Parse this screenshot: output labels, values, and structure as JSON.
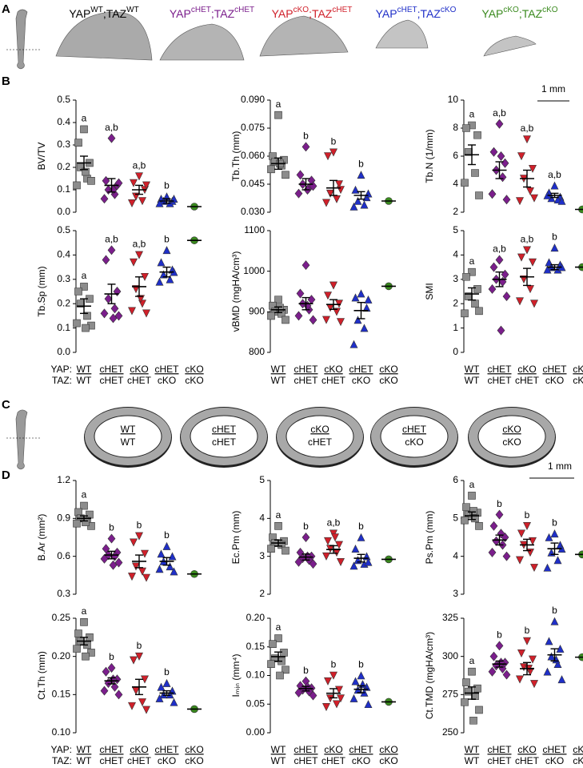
{
  "panel_letters": [
    "A",
    "B",
    "C",
    "D"
  ],
  "scale_bar": "1 mm",
  "genotypes": [
    [
      "YAP",
      "WT",
      ";TAZ",
      "WT"
    ],
    [
      "YAP",
      "cHET",
      ";TAZ",
      "cHET"
    ],
    [
      "YAP",
      "cKO",
      ";TAZ",
      "cHET"
    ],
    [
      "YAP",
      "cHET",
      ";TAZ",
      "cKO"
    ],
    [
      "YAP",
      "cKO",
      ";TAZ",
      "cKO"
    ]
  ],
  "row_labels": [
    "YAP:",
    "TAZ:"
  ],
  "yap": [
    "WT",
    "cHET",
    "cKO",
    "cHET",
    "cKO"
  ],
  "taz": [
    "WT",
    "cHET",
    "cHET",
    "cKO",
    "cKO"
  ],
  "label_colors": [
    "#000000",
    "#7b1e8c",
    "#d0202a",
    "#1f2fc8",
    "#3a8a1e"
  ],
  "marker_colors": [
    "#8c8c8c",
    "#7b1e8c",
    "#d0202a",
    "#1f2fc8",
    "#3a8a1e"
  ],
  "markers": [
    "square",
    "diamond",
    "triangle-down",
    "triangle-up",
    "circle"
  ],
  "chart_data": [
    {
      "type": "strip",
      "ylabel": "BV/TV",
      "ylim": [
        0,
        0.5
      ],
      "yticks": [
        {
          "value": 0,
          "label": "0.0"
        },
        0.1,
        0.2,
        0.3,
        0.4,
        0.5
      ],
      "groups": [
        {
          "values": [
            0.37,
            0.31,
            0.22,
            0.2,
            0.15,
            0.12,
            0.14,
            0.18
          ],
          "mean": 0.22,
          "sem": 0.03,
          "letter": "a"
        },
        {
          "values": [
            0.33,
            0.14,
            0.12,
            0.1,
            0.08,
            0.06,
            0.13,
            0.1
          ],
          "mean": 0.12,
          "sem": 0.03,
          "letter": "a,b"
        },
        {
          "values": [
            0.16,
            0.13,
            0.1,
            0.07,
            0.05,
            0.04,
            0.12
          ],
          "mean": 0.1,
          "sem": 0.02,
          "letter": "a,b"
        },
        {
          "values": [
            0.07,
            0.06,
            0.05,
            0.05,
            0.04,
            0.04,
            0.06
          ],
          "mean": 0.05,
          "sem": 0.01,
          "letter": "b"
        },
        {
          "values": [
            0.025
          ],
          "mean": 0.025
        }
      ]
    },
    {
      "type": "strip",
      "ylabel": "Tb.Th (mm)",
      "ylim": [
        0.03,
        0.09
      ],
      "yticks": [
        {
          "value": 0.03,
          "label": "0.030"
        },
        {
          "value": 0.045,
          "label": "0.045"
        },
        {
          "value": 0.06,
          "label": "0.060"
        },
        {
          "value": 0.075,
          "label": "0.075"
        },
        {
          "value": 0.09,
          "label": "0.090"
        }
      ],
      "groups": [
        {
          "values": [
            0.082,
            0.06,
            0.058,
            0.057,
            0.055,
            0.053,
            0.05,
            0.056
          ],
          "mean": 0.056,
          "sem": 0.003,
          "letter": "a"
        },
        {
          "values": [
            0.065,
            0.05,
            0.047,
            0.045,
            0.043,
            0.04,
            0.044,
            0.042
          ],
          "mean": 0.045,
          "sem": 0.003,
          "letter": "b"
        },
        {
          "values": [
            0.062,
            0.06,
            0.045,
            0.04,
            0.037,
            0.035,
            0.042
          ],
          "mean": 0.043,
          "sem": 0.004,
          "letter": "b"
        },
        {
          "values": [
            0.05,
            0.042,
            0.038,
            0.036,
            0.034,
            0.033,
            0.04
          ],
          "mean": 0.039,
          "sem": 0.002,
          "letter": "b"
        },
        {
          "values": [
            0.036
          ],
          "mean": 0.036
        }
      ]
    },
    {
      "type": "strip",
      "ylabel": "Tb.N (1/mm)",
      "ylim": [
        2,
        10
      ],
      "yticks": [
        2,
        4,
        6,
        8,
        10
      ],
      "groups": [
        {
          "values": [
            8.2,
            8,
            7.5,
            6.3,
            4.8,
            4.1,
            3.2
          ],
          "mean": 6.1,
          "sem": 0.7,
          "letter": "a"
        },
        {
          "values": [
            8.3,
            6.3,
            5.5,
            5,
            4.5,
            3.3,
            2.9,
            6
          ],
          "mean": 5,
          "sem": 0.6,
          "letter": "a,b"
        },
        {
          "values": [
            7.2,
            6,
            5.1,
            4.4,
            3.5,
            2.8,
            3
          ],
          "mean": 4.4,
          "sem": 0.6,
          "letter": "a,b"
        },
        {
          "values": [
            3.9,
            3.4,
            3.1,
            3,
            2.9,
            3.2,
            2.8
          ],
          "mean": 3.2,
          "sem": 0.15,
          "letter": "a,b"
        },
        {
          "values": [
            2.2
          ],
          "mean": 2.2
        }
      ]
    },
    {
      "type": "strip",
      "ylabel": "Tb.Sp (mm)",
      "ylim": [
        0,
        0.5
      ],
      "yticks": [
        {
          "value": 0,
          "label": "0.0"
        },
        0.1,
        0.2,
        0.3,
        0.4,
        0.5
      ],
      "groups": [
        {
          "values": [
            0.27,
            0.25,
            0.22,
            0.2,
            0.15,
            0.12,
            0.11,
            0.1
          ],
          "mean": 0.19,
          "sem": 0.03,
          "letter": "a"
        },
        {
          "values": [
            0.42,
            0.38,
            0.25,
            0.22,
            0.18,
            0.16,
            0.15,
            0.14
          ],
          "mean": 0.24,
          "sem": 0.04,
          "letter": "a,b"
        },
        {
          "values": [
            0.4,
            0.37,
            0.31,
            0.26,
            0.2,
            0.17,
            0.16,
            0.22
          ],
          "mean": 0.27,
          "sem": 0.04,
          "letter": "a,b"
        },
        {
          "values": [
            0.42,
            0.37,
            0.34,
            0.32,
            0.3,
            0.29,
            0.33
          ],
          "mean": 0.33,
          "sem": 0.02,
          "letter": "b"
        },
        {
          "values": [
            0.46
          ],
          "mean": 0.46
        }
      ]
    },
    {
      "type": "strip",
      "ylabel": "vBMD (mgHA/cm³)",
      "ylim": [
        800,
        1100
      ],
      "yticks": [
        800,
        900,
        1000,
        1100
      ],
      "groups": [
        {
          "values": [
            930,
            915,
            905,
            900,
            895,
            890,
            880,
            910
          ],
          "mean": 905,
          "sem": 7
        },
        {
          "values": [
            1015,
            945,
            930,
            920,
            905,
            890,
            880,
            915
          ],
          "mean": 920,
          "sem": 15
        },
        {
          "values": [
            965,
            940,
            920,
            910,
            900,
            880,
            875
          ],
          "mean": 918,
          "sem": 12
        },
        {
          "values": [
            945,
            935,
            910,
            880,
            860,
            820,
            930
          ],
          "mean": 903,
          "sem": 20
        },
        {
          "values": [
            963
          ],
          "mean": 963
        }
      ]
    },
    {
      "type": "strip",
      "ylabel": "SMI",
      "ylim": [
        0,
        5
      ],
      "yticks": [
        0,
        1,
        2,
        3,
        4,
        5
      ],
      "groups": [
        {
          "values": [
            3.3,
            3.1,
            2.6,
            2.3,
            2,
            1.6,
            1.7
          ],
          "mean": 2.4,
          "sem": 0.25,
          "letter": "a"
        },
        {
          "values": [
            3.8,
            3.5,
            3.2,
            3,
            2.9,
            2.6,
            2.3,
            0.9
          ],
          "mean": 3,
          "sem": 0.3,
          "letter": "a,b"
        },
        {
          "values": [
            4.2,
            3.9,
            3.7,
            3,
            2.6,
            2.1,
            2
          ],
          "mean": 3.1,
          "sem": 0.35,
          "letter": "a,b"
        },
        {
          "values": [
            4.3,
            3.7,
            3.6,
            3.5,
            3.4,
            3.4,
            3.5
          ],
          "mean": 3.5,
          "sem": 0.1,
          "letter": "b"
        },
        {
          "values": [
            3.5
          ],
          "mean": 3.5
        }
      ]
    },
    {
      "type": "strip",
      "ylabel": "B.Ar (mm²)",
      "ylim": [
        0.3,
        1.2
      ],
      "yticks": [
        0.3,
        0.6,
        0.9,
        1.2
      ],
      "groups": [
        {
          "values": [
            1,
            0.95,
            0.93,
            0.9,
            0.88,
            0.86,
            0.84,
            0.87
          ],
          "mean": 0.9,
          "sem": 0.02,
          "letter": "a"
        },
        {
          "values": [
            0.74,
            0.66,
            0.63,
            0.61,
            0.6,
            0.58,
            0.55,
            0.53
          ],
          "mean": 0.61,
          "sem": 0.03,
          "letter": "b"
        },
        {
          "values": [
            0.76,
            0.71,
            0.62,
            0.52,
            0.48,
            0.44,
            0.43
          ],
          "mean": 0.56,
          "sem": 0.05,
          "letter": "b"
        },
        {
          "values": [
            0.68,
            0.62,
            0.6,
            0.56,
            0.52,
            0.5,
            0.48
          ],
          "mean": 0.56,
          "sem": 0.03,
          "letter": "b"
        },
        {
          "values": [
            0.46
          ],
          "mean": 0.46
        }
      ]
    },
    {
      "type": "strip",
      "ylabel": "Ec.Pm (mm)",
      "ylim": [
        2,
        5
      ],
      "yticks": [
        2,
        3,
        4,
        5
      ],
      "groups": [
        {
          "values": [
            3.8,
            3.5,
            3.4,
            3.35,
            3.3,
            3.2,
            3.15
          ],
          "mean": 3.35,
          "sem": 0.08,
          "letter": "a"
        },
        {
          "values": [
            3.5,
            3.1,
            3,
            2.95,
            2.9,
            2.85,
            2.8,
            3
          ],
          "mean": 2.98,
          "sem": 0.08,
          "letter": "b"
        },
        {
          "values": [
            3.6,
            3.4,
            3.3,
            3.2,
            3.1,
            3,
            2.85,
            3.5
          ],
          "mean": 3.18,
          "sem": 0.1,
          "letter": "a,b"
        },
        {
          "values": [
            3.5,
            3.2,
            3,
            2.9,
            2.8,
            2.75,
            2.85
          ],
          "mean": 2.95,
          "sem": 0.1,
          "letter": "b"
        },
        {
          "values": [
            2.92
          ],
          "mean": 2.92
        }
      ]
    },
    {
      "type": "strip",
      "ylabel": "Ps.Pm (mm)",
      "ylim": [
        3,
        6
      ],
      "yticks": [
        3,
        4,
        5,
        6
      ],
      "groups": [
        {
          "values": [
            5.6,
            5.3,
            5.15,
            5.1,
            5,
            4.95,
            4.8,
            5.2
          ],
          "mean": 5.07,
          "sem": 0.1,
          "letter": "a"
        },
        {
          "values": [
            5.1,
            4.8,
            4.5,
            4.4,
            4.3,
            4.1,
            4,
            4.6
          ],
          "mean": 4.43,
          "sem": 0.13,
          "letter": "b"
        },
        {
          "values": [
            4.8,
            4.6,
            4.4,
            4.3,
            4.1,
            3.9,
            3.7
          ],
          "mean": 4.3,
          "sem": 0.15,
          "letter": "b"
        },
        {
          "values": [
            4.6,
            4.5,
            4.3,
            4.1,
            3.9,
            3.7,
            4.2
          ],
          "mean": 4.2,
          "sem": 0.15,
          "letter": "b"
        },
        {
          "values": [
            4.05
          ],
          "mean": 4.05
        }
      ]
    },
    {
      "type": "strip",
      "ylabel": "Ct.Th (mm)",
      "ylim": [
        0.1,
        0.25
      ],
      "yticks": [
        {
          "value": 0.1,
          "label": "0.10"
        },
        0.15,
        {
          "value": 0.2,
          "label": "0.20"
        },
        0.25
      ],
      "groups": [
        {
          "values": [
            0.245,
            0.23,
            0.225,
            0.22,
            0.215,
            0.21,
            0.205,
            0.2
          ],
          "mean": 0.22,
          "sem": 0.005,
          "letter": "a"
        },
        {
          "values": [
            0.185,
            0.18,
            0.17,
            0.165,
            0.16,
            0.155,
            0.15,
            0.17
          ],
          "mean": 0.168,
          "sem": 0.004,
          "letter": "b"
        },
        {
          "values": [
            0.2,
            0.195,
            0.17,
            0.155,
            0.14,
            0.135,
            0.13
          ],
          "mean": 0.16,
          "sem": 0.01,
          "letter": "b"
        },
        {
          "values": [
            0.165,
            0.16,
            0.155,
            0.15,
            0.15,
            0.145,
            0.14
          ],
          "mean": 0.152,
          "sem": 0.003,
          "letter": "b"
        },
        {
          "values": [
            0.131
          ],
          "mean": 0.131
        }
      ]
    },
    {
      "type": "strip",
      "ylabel": "Iₘᵢₙ (mm⁴)",
      "ylim": [
        0,
        0.2
      ],
      "yticks": [
        {
          "value": 0,
          "label": "0.00"
        },
        0.05,
        {
          "value": 0.1,
          "label": "0.10"
        },
        0.15,
        {
          "value": 0.2,
          "label": "0.20"
        }
      ],
      "groups": [
        {
          "values": [
            0.165,
            0.155,
            0.14,
            0.13,
            0.125,
            0.12,
            0.11,
            0.1
          ],
          "mean": 0.133,
          "sem": 0.008,
          "letter": "a"
        },
        {
          "values": [
            0.09,
            0.082,
            0.078,
            0.075,
            0.072,
            0.07,
            0.065,
            0.08
          ],
          "mean": 0.077,
          "sem": 0.004,
          "letter": "b"
        },
        {
          "values": [
            0.1,
            0.09,
            0.075,
            0.06,
            0.05,
            0.045,
            0.06
          ],
          "mean": 0.069,
          "sem": 0.008,
          "letter": "b"
        },
        {
          "values": [
            0.1,
            0.09,
            0.08,
            0.075,
            0.07,
            0.06,
            0.05,
            0.085
          ],
          "mean": 0.076,
          "sem": 0.006,
          "letter": "b"
        },
        {
          "values": [
            0.054
          ],
          "mean": 0.054
        }
      ]
    },
    {
      "type": "strip",
      "ylabel": "Ct.TMD (mgHA/cm³)",
      "ylim": [
        250,
        325
      ],
      "yticks": [
        250,
        275,
        300,
        325
      ],
      "groups": [
        {
          "values": [
            290,
            283,
            279,
            277,
            274,
            270,
            265,
            258
          ],
          "mean": 276,
          "sem": 4,
          "letter": "a"
        },
        {
          "values": [
            307,
            300,
            296,
            294,
            292,
            290,
            288,
            296
          ],
          "mean": 295,
          "sem": 2,
          "letter": "b"
        },
        {
          "values": [
            310,
            302,
            298,
            293,
            290,
            285,
            282,
            292
          ],
          "mean": 292,
          "sem": 4,
          "letter": "b"
        },
        {
          "values": [
            323,
            310,
            305,
            300,
            295,
            290,
            285,
            298
          ],
          "mean": 301,
          "sem": 4,
          "letter": "b"
        },
        {
          "values": [
            299.5
          ],
          "mean": 299.5
        }
      ]
    }
  ]
}
